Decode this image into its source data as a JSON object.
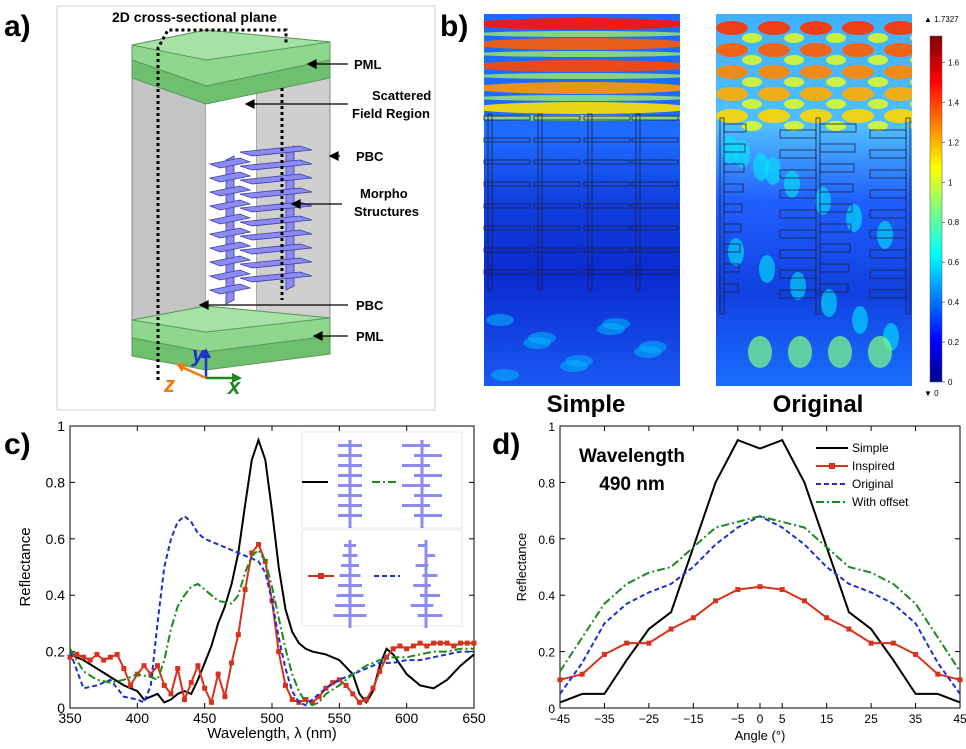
{
  "panel_a": {
    "letter": "a)",
    "labels": {
      "plane": "2D cross-sectional plane",
      "pml_top": "PML",
      "scattered_1": "Scattered",
      "scattered_2": "Field Region",
      "pbc_top": "PBC",
      "morpho_1": "Morpho",
      "morpho_2": "Structures",
      "pbc_bottom": "PBC",
      "pml_bottom": "PML",
      "axis_y": "y",
      "axis_z": "z",
      "axis_x": "x"
    },
    "colors": {
      "pml": "#8fd68f",
      "wall": "#c8c8c8",
      "morpho": "#8c8cf0",
      "axis_y": "#1f2fd0",
      "axis_z": "#f07a10",
      "axis_x": "#1a8a1a"
    }
  },
  "panel_b": {
    "letter": "b)",
    "simple_label": "Simple",
    "original_label": "Original",
    "colorbar": {
      "max_label": "▲ 1.7327",
      "min_label": "▼ 0",
      "ticks": [
        "1.6",
        "1.4",
        "1.2",
        "1",
        "0.8",
        "0.6",
        "0.4",
        "0.2",
        "0"
      ],
      "tick_values": [
        1.6,
        1.4,
        1.2,
        1.0,
        0.8,
        0.6,
        0.4,
        0.2,
        0
      ],
      "range": [
        0,
        1.7327
      ]
    }
  },
  "panel_c": {
    "letter": "c)",
    "chart_data": {
      "type": "line",
      "xlabel": "Wavelength, λ (nm)",
      "ylabel": "Reflectance",
      "xlim": [
        350,
        650
      ],
      "ylim": [
        0,
        1
      ],
      "xticks": [
        "350",
        "400",
        "450",
        "500",
        "550",
        "600",
        "650"
      ],
      "yticks": [
        "0",
        "0.2",
        "0.4",
        "0.6",
        "0.8",
        "1"
      ],
      "legend_placement": "inset top-right",
      "series": [
        {
          "style": "solid",
          "color": "#000000",
          "markers": false,
          "x": [
            350,
            360,
            370,
            380,
            390,
            400,
            405,
            410,
            415,
            420,
            425,
            430,
            435,
            440,
            445,
            450,
            455,
            460,
            465,
            470,
            475,
            480,
            485,
            490,
            495,
            500,
            505,
            510,
            515,
            520,
            525,
            530,
            540,
            550,
            560,
            565,
            570,
            575,
            580,
            585,
            590,
            600,
            610,
            620,
            630,
            640,
            650
          ],
          "y": [
            0.19,
            0.17,
            0.14,
            0.11,
            0.08,
            0.06,
            0.03,
            0.04,
            0.05,
            0.02,
            0.03,
            0.05,
            0.06,
            0.05,
            0.1,
            0.16,
            0.22,
            0.3,
            0.36,
            0.44,
            0.55,
            0.72,
            0.88,
            0.95,
            0.88,
            0.7,
            0.5,
            0.35,
            0.27,
            0.23,
            0.21,
            0.2,
            0.19,
            0.17,
            0.12,
            0.05,
            0.02,
            0.06,
            0.15,
            0.21,
            0.19,
            0.12,
            0.08,
            0.07,
            0.1,
            0.15,
            0.19
          ]
        },
        {
          "style": "solid",
          "color": "#d8321e",
          "markers": true,
          "x": [
            350,
            355,
            360,
            365,
            370,
            375,
            380,
            385,
            390,
            395,
            400,
            405,
            410,
            415,
            420,
            425,
            430,
            435,
            440,
            445,
            450,
            455,
            460,
            465,
            470,
            475,
            480,
            485,
            490,
            495,
            500,
            505,
            510,
            515,
            520,
            525,
            530,
            535,
            540,
            545,
            550,
            555,
            560,
            565,
            570,
            575,
            580,
            585,
            590,
            595,
            600,
            605,
            610,
            615,
            620,
            625,
            630,
            635,
            640,
            645,
            650
          ],
          "y": [
            0.18,
            0.19,
            0.18,
            0.17,
            0.19,
            0.17,
            0.18,
            0.19,
            0.14,
            0.08,
            0.12,
            0.15,
            0.12,
            0.15,
            0.08,
            0.05,
            0.14,
            0.03,
            0.09,
            0.15,
            0.07,
            0.02,
            0.12,
            0.04,
            0.16,
            0.26,
            0.42,
            0.55,
            0.58,
            0.52,
            0.38,
            0.2,
            0.08,
            0.03,
            0.02,
            0.03,
            0.02,
            0.04,
            0.07,
            0.09,
            0.1,
            0.08,
            0.05,
            0.02,
            0.03,
            0.07,
            0.13,
            0.18,
            0.21,
            0.22,
            0.21,
            0.22,
            0.23,
            0.22,
            0.23,
            0.23,
            0.23,
            0.22,
            0.23,
            0.23,
            0.23
          ]
        },
        {
          "style": "dashed",
          "color": "#1f2fd0",
          "markers": false,
          "x": [
            350,
            360,
            370,
            380,
            390,
            400,
            405,
            410,
            415,
            420,
            425,
            430,
            435,
            440,
            445,
            450,
            460,
            470,
            480,
            485,
            490,
            495,
            500,
            505,
            510,
            515,
            520,
            525,
            530,
            540,
            550,
            560,
            570,
            580,
            590,
            600,
            610,
            620,
            630,
            640,
            650
          ],
          "y": [
            0.2,
            0.07,
            0.08,
            0.1,
            0.04,
            0.03,
            0.02,
            0.08,
            0.3,
            0.5,
            0.6,
            0.66,
            0.68,
            0.66,
            0.62,
            0.6,
            0.58,
            0.56,
            0.54,
            0.53,
            0.52,
            0.48,
            0.38,
            0.25,
            0.14,
            0.06,
            0.02,
            0.01,
            0.03,
            0.07,
            0.1,
            0.12,
            0.14,
            0.16,
            0.16,
            0.17,
            0.17,
            0.18,
            0.19,
            0.2,
            0.2
          ]
        },
        {
          "style": "dashdot",
          "color": "#1a8a1a",
          "markers": false,
          "x": [
            350,
            360,
            370,
            380,
            390,
            400,
            410,
            415,
            420,
            425,
            430,
            435,
            440,
            445,
            450,
            460,
            470,
            475,
            480,
            485,
            490,
            495,
            500,
            505,
            510,
            515,
            520,
            525,
            530,
            535,
            540,
            550,
            560,
            570,
            580,
            590,
            600,
            610,
            620,
            630,
            640,
            650
          ],
          "y": [
            0.21,
            0.13,
            0.1,
            0.09,
            0.1,
            0.12,
            0.11,
            0.1,
            0.17,
            0.28,
            0.36,
            0.4,
            0.43,
            0.44,
            0.42,
            0.38,
            0.37,
            0.4,
            0.48,
            0.54,
            0.56,
            0.52,
            0.43,
            0.32,
            0.21,
            0.12,
            0.06,
            0.02,
            0.01,
            0.02,
            0.05,
            0.08,
            0.12,
            0.15,
            0.17,
            0.18,
            0.18,
            0.19,
            0.2,
            0.2,
            0.21,
            0.21
          ]
        }
      ]
    }
  },
  "panel_d": {
    "letter": "d)",
    "annotation_1": "Wavelength",
    "annotation_2": "490 nm",
    "chart_data": {
      "type": "line",
      "xlabel": "Angle (°)",
      "ylabel": "Reflectance",
      "xlim": [
        -45,
        45
      ],
      "ylim": [
        0,
        1
      ],
      "xticks": [
        "−45",
        "−35",
        "−25",
        "−15",
        "−5",
        "0",
        "5",
        "15",
        "25",
        "35",
        "45"
      ],
      "xtick_values": [
        -45,
        -35,
        -25,
        -15,
        -5,
        0,
        5,
        15,
        25,
        35,
        45
      ],
      "yticks": [
        "0",
        "0.2",
        "0.4",
        "0.6",
        "0.8",
        "1"
      ],
      "legend_placement": "top-right",
      "series": [
        {
          "name": "Simple",
          "style": "solid",
          "color": "#000000",
          "markers": false,
          "x": [
            -45,
            -40,
            -35,
            -30,
            -25,
            -20,
            -15,
            -10,
            -5,
            0,
            5,
            10,
            15,
            20,
            25,
            30,
            35,
            40,
            45
          ],
          "y": [
            0.02,
            0.05,
            0.05,
            0.17,
            0.28,
            0.34,
            0.57,
            0.8,
            0.95,
            0.92,
            0.95,
            0.8,
            0.57,
            0.34,
            0.28,
            0.17,
            0.05,
            0.05,
            0.02
          ]
        },
        {
          "name": "Inspired",
          "style": "solid",
          "color": "#d8321e",
          "markers": true,
          "x": [
            -45,
            -40,
            -35,
            -30,
            -25,
            -20,
            -15,
            -10,
            -5,
            0,
            5,
            10,
            15,
            20,
            25,
            30,
            35,
            40,
            45
          ],
          "y": [
            0.1,
            0.12,
            0.19,
            0.23,
            0.23,
            0.28,
            0.32,
            0.38,
            0.42,
            0.43,
            0.42,
            0.38,
            0.32,
            0.28,
            0.23,
            0.23,
            0.19,
            0.12,
            0.1
          ]
        },
        {
          "name": "Original",
          "style": "dashed",
          "color": "#1f2fd0",
          "markers": false,
          "x": [
            -45,
            -40,
            -35,
            -30,
            -25,
            -20,
            -15,
            -10,
            -5,
            0,
            5,
            10,
            15,
            20,
            25,
            30,
            35,
            40,
            45
          ],
          "y": [
            0.05,
            0.16,
            0.3,
            0.37,
            0.41,
            0.44,
            0.5,
            0.58,
            0.64,
            0.68,
            0.64,
            0.58,
            0.5,
            0.44,
            0.41,
            0.37,
            0.3,
            0.16,
            0.05
          ]
        },
        {
          "name": "With offset",
          "style": "dashdot",
          "color": "#1a8a1a",
          "markers": false,
          "x": [
            -45,
            -40,
            -35,
            -30,
            -25,
            -20,
            -15,
            -10,
            -5,
            0,
            5,
            10,
            15,
            20,
            25,
            30,
            35,
            40,
            45
          ],
          "y": [
            0.13,
            0.25,
            0.37,
            0.44,
            0.48,
            0.5,
            0.57,
            0.64,
            0.66,
            0.68,
            0.66,
            0.64,
            0.57,
            0.5,
            0.48,
            0.44,
            0.37,
            0.25,
            0.13
          ]
        }
      ]
    }
  }
}
